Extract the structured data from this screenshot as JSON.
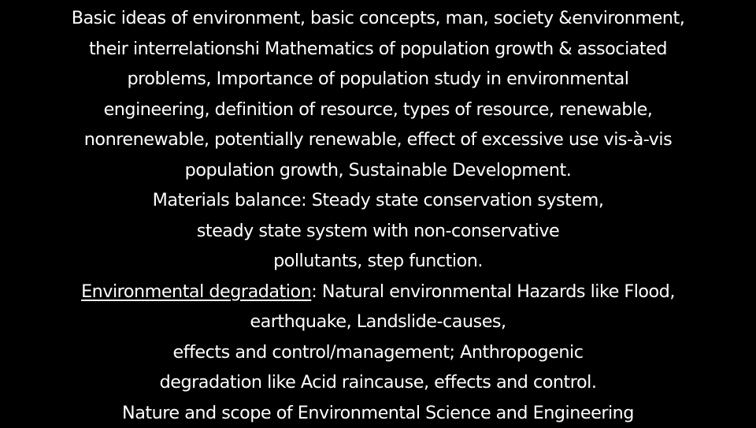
{
  "slide": {
    "lines": [
      "Basic ideas of environment, basic concepts, man, society &environment,",
      "their interrelationshi Mathematics of population growth & associated",
      "problems, Importance of population study in environmental",
      "engineering, definition of resource, types of resource, renewable,",
      "nonrenewable, potentially renewable, effect of excessive use vis-à-vis",
      "population growth, Sustainable Development.",
      "Materials balance: Steady state conservation system,",
      "steady state system with non-conservative",
      "pollutants, step function."
    ],
    "degradation_heading": " Environmental degradation",
    "degradation_rest": ": Natural environmental Hazards like Flood,",
    "lines_after": [
      "earthquake, Landslide-causes,",
      "effects and control/management; Anthropogenic",
      "degradation like Acid raincause, effects and control.",
      "Nature and scope of Environmental Science and Engineering"
    ]
  }
}
